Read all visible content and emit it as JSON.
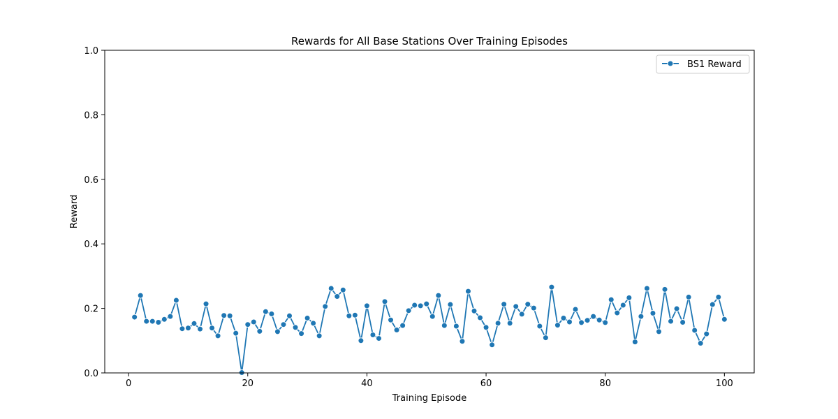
{
  "chart_data": {
    "type": "line",
    "title": "Rewards for All Base Stations Over Training Episodes",
    "xlabel": "Training Episode",
    "ylabel": "Reward",
    "xlim": [
      -4,
      105
    ],
    "ylim": [
      0,
      1
    ],
    "xticks": [
      0,
      20,
      40,
      60,
      80,
      100
    ],
    "yticks": [
      0.0,
      0.2,
      0.4,
      0.6,
      0.8,
      1.0
    ],
    "grid": false,
    "legend_position": "top-right",
    "series": [
      {
        "name": "BS1 Reward",
        "color": "#1f77b4",
        "marker": "circle",
        "x": [
          1,
          2,
          3,
          4,
          5,
          6,
          7,
          8,
          9,
          10,
          11,
          12,
          13,
          14,
          15,
          16,
          17,
          18,
          19,
          20,
          21,
          22,
          23,
          24,
          25,
          26,
          27,
          28,
          29,
          30,
          31,
          32,
          33,
          34,
          35,
          36,
          37,
          38,
          39,
          40,
          41,
          42,
          43,
          44,
          45,
          46,
          47,
          48,
          49,
          50,
          51,
          52,
          53,
          54,
          55,
          56,
          57,
          58,
          59,
          60,
          61,
          62,
          63,
          64,
          65,
          66,
          67,
          68,
          69,
          70,
          71,
          72,
          73,
          74,
          75,
          76,
          77,
          78,
          79,
          80,
          81,
          82,
          83,
          84,
          85,
          86,
          87,
          88,
          89,
          90,
          91,
          92,
          93,
          94,
          95,
          96,
          97,
          98,
          99,
          100
        ],
        "values": [
          0.173,
          0.24,
          0.16,
          0.16,
          0.157,
          0.166,
          0.175,
          0.225,
          0.137,
          0.139,
          0.153,
          0.136,
          0.214,
          0.139,
          0.115,
          0.178,
          0.177,
          0.123,
          0.001,
          0.15,
          0.158,
          0.129,
          0.19,
          0.183,
          0.128,
          0.15,
          0.177,
          0.141,
          0.122,
          0.17,
          0.154,
          0.115,
          0.206,
          0.262,
          0.237,
          0.257,
          0.177,
          0.179,
          0.1,
          0.208,
          0.118,
          0.107,
          0.221,
          0.164,
          0.133,
          0.147,
          0.193,
          0.21,
          0.208,
          0.214,
          0.175,
          0.24,
          0.147,
          0.212,
          0.145,
          0.098,
          0.253,
          0.192,
          0.171,
          0.141,
          0.087,
          0.154,
          0.213,
          0.154,
          0.206,
          0.182,
          0.213,
          0.201,
          0.145,
          0.109,
          0.266,
          0.148,
          0.17,
          0.158,
          0.197,
          0.156,
          0.163,
          0.175,
          0.164,
          0.156,
          0.227,
          0.186,
          0.21,
          0.233,
          0.096,
          0.175,
          0.262,
          0.185,
          0.128,
          0.259,
          0.16,
          0.199,
          0.157,
          0.235,
          0.132,
          0.092,
          0.121,
          0.212,
          0.235,
          0.166
        ]
      }
    ]
  }
}
